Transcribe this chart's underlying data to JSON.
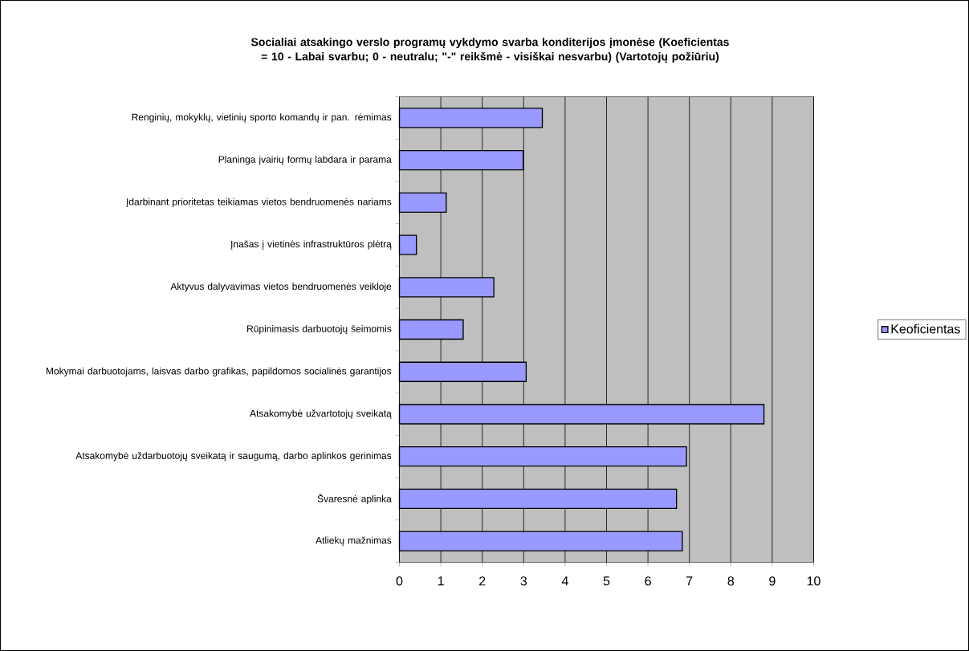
{
  "chart_data": {
    "type": "bar",
    "orientation": "horizontal",
    "title": "Socialiai atsakingo verslo programų vykdymo svarba konditerijos įmonėse (Koeficientas = 10 - Labai svarbu; 0 - neutralu; \"-\" reikšmė - visiškai nesvarbu) (Vartotojų požiūriu)",
    "categories": [
      "Renginių, mokyklų, vietinių sporto komandų ir pan. rėmimas",
      "Planinga įvairių formų labdara ir parama",
      "Įdarbinant prioritetas teikiamas vietos bendruomenės nariams",
      "Įnašas į vietinės infrastruktūros plėtrą",
      "Aktyvus dalyvavimas vietos bendruomenės veikloje",
      "Rūpinimasis darbuotojų šeimomis",
      "Mokymai darbuotojams, laisvas darbo grafikas, papildomos socialinės garantijos",
      "Atsakomybė užvartotojų sveikatą",
      "Atsakomybė uždarbuotojų sveikatą ir saugumą, darbo aplinkos gerinimas",
      "Švaresnė aplinka",
      "Atliekų mažnimas"
    ],
    "series": [
      {
        "name": "Keoficientas",
        "color": "#9999ff",
        "values": [
          3.45,
          2.99,
          1.13,
          0.41,
          2.28,
          1.54,
          3.06,
          8.8,
          6.93,
          6.69,
          6.83
        ]
      }
    ],
    "xlim": [
      0,
      10
    ],
    "xticks": [
      0,
      1,
      2,
      3,
      4,
      5,
      6,
      7,
      8,
      9,
      10
    ],
    "grid": "x",
    "legend": "right"
  }
}
